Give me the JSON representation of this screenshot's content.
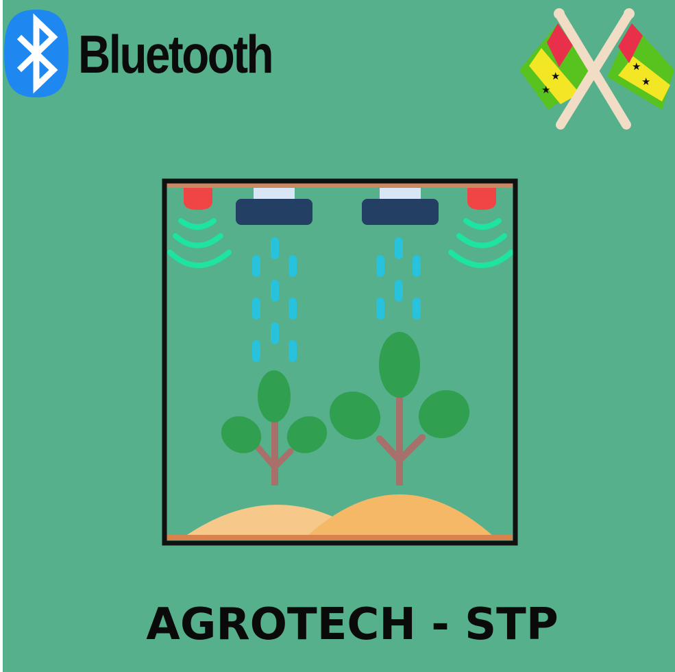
{
  "brand": {
    "wordmark": "Bluetooth",
    "logo_icon": "bluetooth-icon"
  },
  "emblem": {
    "icon": "crossed-flags-sao-tome-principe-icon"
  },
  "illustration": {
    "icon": "smart-greenhouse-icon"
  },
  "title": "AGROTECH - STP",
  "colors": {
    "background": "#55b08b",
    "bluetooth_blue": "#1e88f0",
    "frame": "#111111",
    "sensor_red": "#ef4545",
    "signal_green": "#1fe3a0",
    "sprinkler_dark": "#233f63",
    "water_drop": "#28c2dd",
    "leaf_green": "#30a050",
    "stem_brown": "#a7706a",
    "soil_light": "#f6c98a",
    "soil_dark": "#f5b866"
  }
}
